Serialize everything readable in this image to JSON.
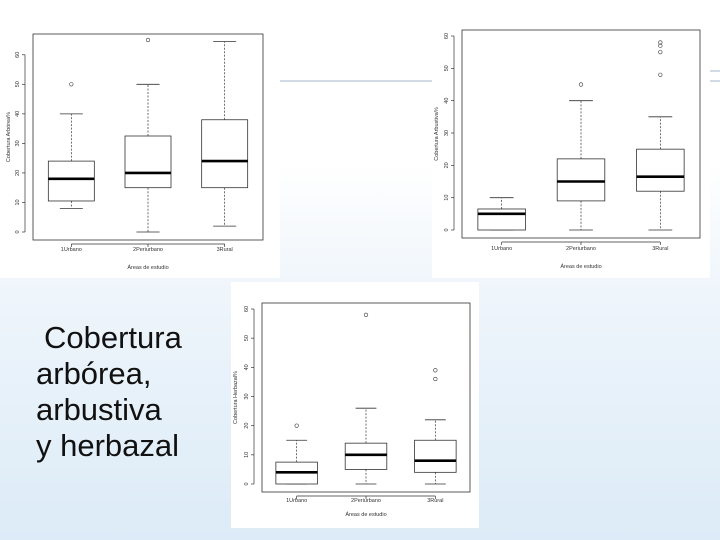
{
  "caption": {
    "lines": [
      "Cobertura",
      "arbórea,",
      "arbustiva",
      "y herbazal"
    ]
  },
  "chart_data": [
    {
      "type": "boxplot",
      "ylabel": "Cobertura Arbórea%",
      "xlabel": "Áreas de estudio",
      "categories": [
        "1Urbano",
        "2Periurbano",
        "3Rural"
      ],
      "ylim": [
        0,
        65
      ],
      "yticks": [
        "0",
        "10",
        "20",
        "30",
        "40",
        "50",
        "60"
      ],
      "boxes": [
        {
          "whisker_low": 8,
          "q1": 10.5,
          "median": 18,
          "q3": 24,
          "whisker_high": 40,
          "outliers": [
            50
          ]
        },
        {
          "whisker_low": 0,
          "q1": 15,
          "median": 20,
          "q3": 32.5,
          "whisker_high": 50,
          "outliers": [
            65
          ]
        },
        {
          "whisker_low": 2,
          "q1": 15,
          "median": 24,
          "q3": 38,
          "whisker_high": 64.5,
          "outliers": []
        }
      ]
    },
    {
      "type": "boxplot",
      "ylabel": "Cobertura Arbustiva%",
      "xlabel": "Áreas de estudio",
      "categories": [
        "1Urbano",
        "2Periurbano",
        "3Rural"
      ],
      "ylim": [
        0,
        60
      ],
      "yticks": [
        "0",
        "10",
        "20",
        "30",
        "40",
        "50",
        "60"
      ],
      "boxes": [
        {
          "whisker_low": 0,
          "q1": 0,
          "median": 5,
          "q3": 6.5,
          "whisker_high": 10,
          "outliers": []
        },
        {
          "whisker_low": 0,
          "q1": 9,
          "median": 15,
          "q3": 22,
          "whisker_high": 40,
          "outliers": [
            45
          ]
        },
        {
          "whisker_low": 0,
          "q1": 12,
          "median": 16.5,
          "q3": 25,
          "whisker_high": 35,
          "outliers": [
            48,
            55,
            57,
            58
          ]
        }
      ]
    },
    {
      "type": "boxplot",
      "ylabel": "Cobertura Herbazal%",
      "xlabel": "Áreas de estudio",
      "categories": [
        "1Urbano",
        "2Periurbano",
        "3Rural"
      ],
      "ylim": [
        0,
        60
      ],
      "yticks": [
        "0",
        "10",
        "20",
        "30",
        "40",
        "50",
        "60"
      ],
      "boxes": [
        {
          "whisker_low": 0,
          "q1": 0,
          "median": 4,
          "q3": 7.5,
          "whisker_high": 15,
          "outliers": [
            20
          ]
        },
        {
          "whisker_low": 0,
          "q1": 5,
          "median": 10,
          "q3": 14,
          "whisker_high": 26,
          "outliers": [
            58
          ]
        },
        {
          "whisker_low": 0,
          "q1": 4,
          "median": 8,
          "q3": 15,
          "whisker_high": 22,
          "outliers": [
            36,
            39
          ]
        }
      ]
    }
  ]
}
